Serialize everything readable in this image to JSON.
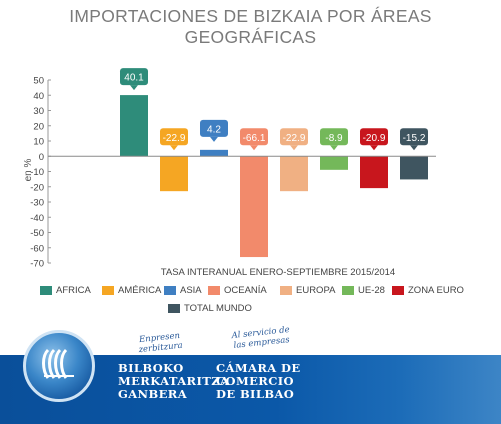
{
  "chart_data": {
    "type": "bar",
    "title_lines": [
      "IMPORTACIONES DE BIZKAIA POR ÁREAS",
      "GEOGRÁFICAS"
    ],
    "ylabel": "en %",
    "xlabel": "TASA INTERANUAL ENERO-SEPTIEMBRE 2015/2014",
    "ylim": [
      -70,
      50
    ],
    "yticks": [
      50,
      40,
      30,
      20,
      10,
      0,
      -10,
      -20,
      -30,
      -40,
      -50,
      -60,
      -70
    ],
    "grid": false,
    "legend_position": "bottom",
    "categories": [
      "AFRICA",
      "AMÉRICA",
      "ASIA",
      "OCEANÍA",
      "EUROPA",
      "UE-28",
      "ZONA EURO",
      "TOTAL MUNDO"
    ],
    "values": [
      40.1,
      -22.9,
      4.2,
      -66.1,
      -22.9,
      -8.9,
      -20.9,
      -15.2
    ],
    "value_labels": [
      "40.1",
      "-22.9",
      "4.2",
      "-66.1",
      "-22.9",
      "-8.9",
      "-20.9",
      "-15.2"
    ],
    "colors": [
      "#2e8c7a",
      "#f5a623",
      "#3f7fc2",
      "#f28a6b",
      "#f0b083",
      "#74b85a",
      "#c8161d",
      "#3f5560"
    ]
  },
  "footer": {
    "tagline_left": [
      "Enpresen",
      "zerbitzura"
    ],
    "tagline_right": [
      "Al servicio de",
      "las empresas"
    ],
    "basque_name": [
      "BILBOKO",
      "MERKATARITZA",
      "GANBERA"
    ],
    "spanish_name": [
      "CÁMARA DE",
      "COMERCIO",
      "DE BILBAO"
    ]
  },
  "colors": {
    "footer_blue": "#0b58a8",
    "title_gray": "#7a7a7a"
  }
}
